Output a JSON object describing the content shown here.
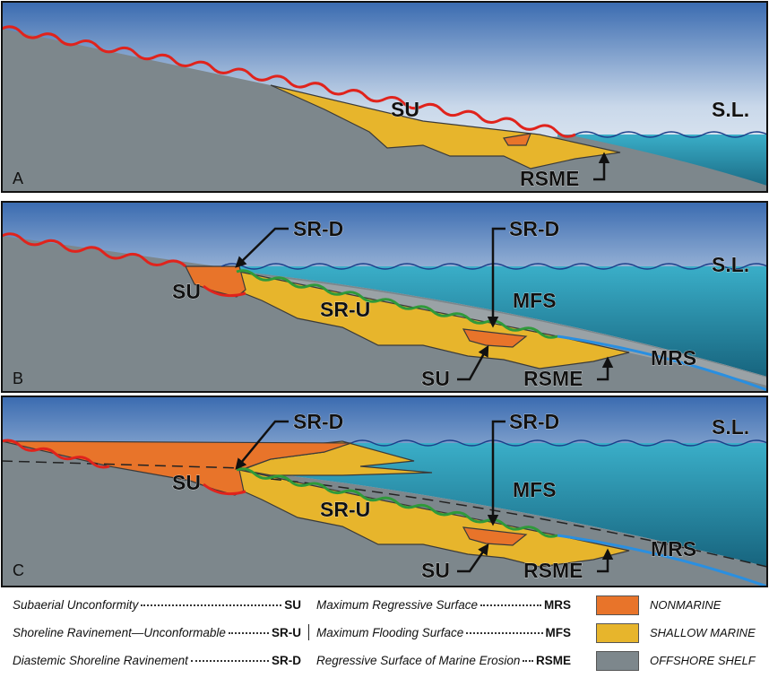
{
  "panels": [
    {
      "letter": "A",
      "labels": [
        "SU",
        "S.L.",
        "RSME"
      ]
    },
    {
      "letter": "B",
      "labels": [
        "SR-D",
        "SR-D",
        "S.L.",
        "SU",
        "SR-U",
        "MFS",
        "MRS",
        "SU",
        "RSME"
      ]
    },
    {
      "letter": "C",
      "labels": [
        "SR-D",
        "SR-D",
        "S.L.",
        "SU",
        "SR-U",
        "MFS",
        "MRS",
        "SU",
        "RSME"
      ]
    }
  ],
  "legend": {
    "surfaces_left": [
      {
        "name": "Subaerial Unconformity",
        "abbr": "SU"
      },
      {
        "name": "Shoreline Ravinement—Unconformable",
        "abbr": "SR-U"
      },
      {
        "name": "Diastemic Shoreline Ravinement",
        "abbr": "SR-D"
      }
    ],
    "surfaces_right": [
      {
        "name": "Maximum Regressive Surface",
        "abbr": "MRS"
      },
      {
        "name": "Maximum Flooding Surface",
        "abbr": "MFS"
      },
      {
        "name": "Regressive Surface of Marine Erosion",
        "abbr": "RSME"
      }
    ],
    "facies": [
      {
        "name": "NONMARINE",
        "color": "#e8742a"
      },
      {
        "name": "SHALLOW MARINE",
        "color": "#e7b52c"
      },
      {
        "name": "OFFSHORE SHELF",
        "color": "#7d878c"
      }
    ]
  }
}
